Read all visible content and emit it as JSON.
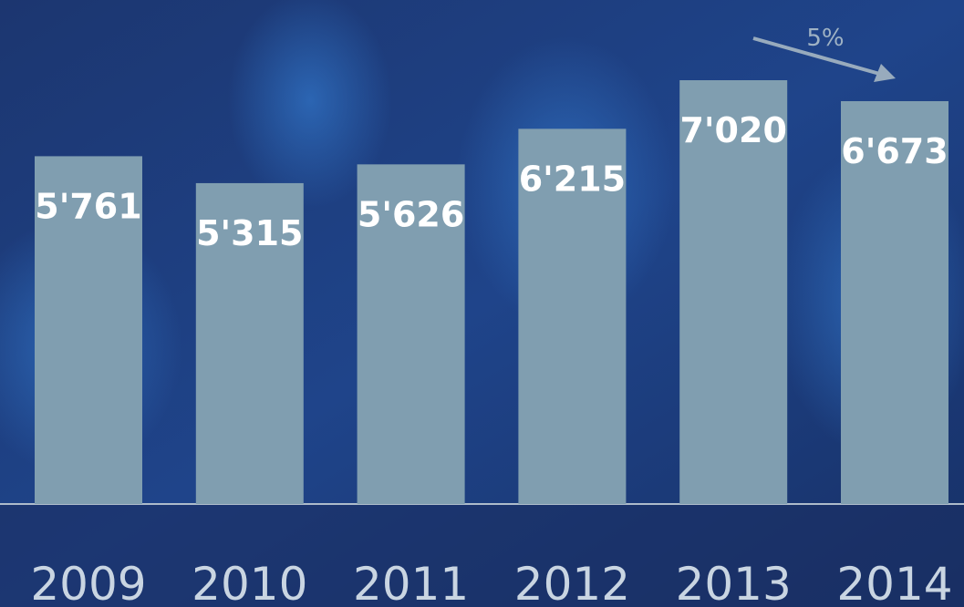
{
  "chart_data": {
    "type": "bar",
    "categories": [
      "2009",
      "2010",
      "2011",
      "2012",
      "2013",
      "2014"
    ],
    "values": [
      5761,
      5315,
      5626,
      6215,
      7020,
      6673
    ],
    "value_labels": [
      "5'761",
      "5'315",
      "5'626",
      "6'215",
      "7'020",
      "6'673"
    ],
    "color": "#809eb0",
    "annotation": "5%"
  }
}
